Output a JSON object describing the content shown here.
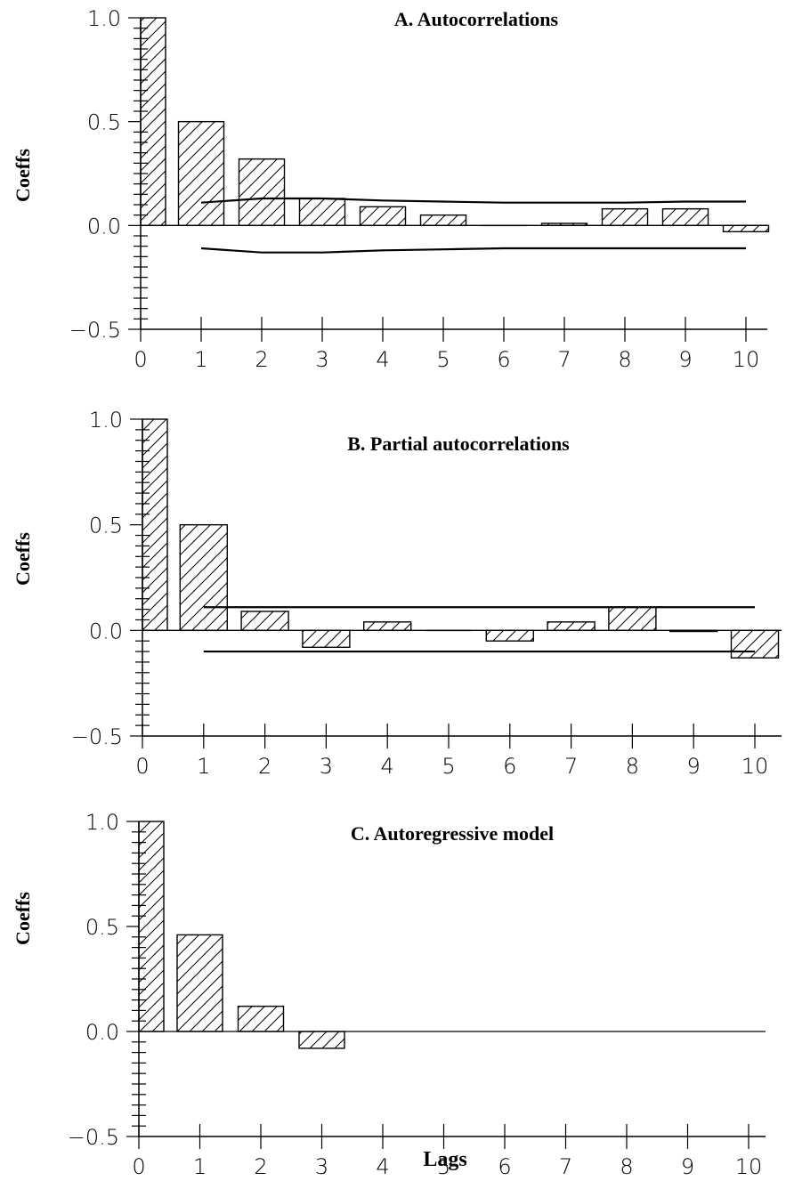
{
  "figure": {
    "xlabel": "Lags",
    "colors": {
      "ink": "#000000",
      "background": "#ffffff"
    },
    "bar_fill": "diagonal-hatch"
  },
  "chart_data": [
    {
      "type": "bar",
      "title": "A. Autocorrelations",
      "ylabel": "Coeffs",
      "xlabel": "",
      "x": [
        0,
        1,
        2,
        3,
        4,
        5,
        6,
        7,
        8,
        9,
        10
      ],
      "values": [
        1.0,
        0.5,
        0.32,
        0.13,
        0.09,
        0.05,
        0.0,
        0.01,
        0.08,
        0.08,
        -0.03
      ],
      "ylim": [
        -0.5,
        1.0
      ],
      "xlim": [
        0,
        10
      ],
      "yticks": [
        "1.0",
        "0.5",
        "0.0",
        "−0.5"
      ],
      "yticks_values": [
        1.0,
        0.5,
        0.0,
        -0.5
      ],
      "xticks": [
        "0",
        "1",
        "2",
        "3",
        "4",
        "5",
        "6",
        "7",
        "8",
        "9",
        "10"
      ],
      "confidence_band": {
        "x": [
          1,
          2,
          3,
          4,
          5,
          6,
          7,
          8,
          9,
          10
        ],
        "upper": [
          0.11,
          0.13,
          0.13,
          0.12,
          0.115,
          0.11,
          0.11,
          0.11,
          0.115,
          0.115
        ],
        "lower": [
          -0.11,
          -0.13,
          -0.13,
          -0.12,
          -0.115,
          -0.11,
          -0.11,
          -0.11,
          -0.11,
          -0.11
        ]
      },
      "grid": false
    },
    {
      "type": "bar",
      "title": "B. Partial autocorrelations",
      "ylabel": "Coeffs",
      "xlabel": "",
      "x": [
        0,
        1,
        2,
        3,
        4,
        5,
        6,
        7,
        8,
        9,
        10
      ],
      "values": [
        1.0,
        0.5,
        0.09,
        -0.08,
        0.04,
        0.0,
        -0.05,
        0.04,
        0.11,
        -0.005,
        -0.13
      ],
      "ylim": [
        -0.5,
        1.0
      ],
      "xlim": [
        0,
        10
      ],
      "yticks": [
        "1.0",
        "0.5",
        "0.0",
        "−0.5"
      ],
      "yticks_values": [
        1.0,
        0.5,
        0.0,
        -0.5
      ],
      "xticks": [
        "0",
        "1",
        "2",
        "3",
        "4",
        "5",
        "6",
        "7",
        "8",
        "9",
        "10"
      ],
      "confidence_band": {
        "x": [
          1,
          10
        ],
        "upper": [
          0.11,
          0.11
        ],
        "lower": [
          -0.1,
          -0.1
        ]
      },
      "grid": false
    },
    {
      "type": "bar",
      "title": "C. Autoregressive model",
      "ylabel": "Coeffs",
      "xlabel": "Lags",
      "x": [
        0,
        1,
        2,
        3
      ],
      "values": [
        1.0,
        0.46,
        0.12,
        -0.08
      ],
      "ylim": [
        -0.5,
        1.0
      ],
      "xlim": [
        0,
        10
      ],
      "yticks": [
        "1.0",
        "0.5",
        "0.0",
        "−0.5"
      ],
      "yticks_values": [
        1.0,
        0.5,
        0.0,
        -0.5
      ],
      "xticks": [
        "0",
        "1",
        "2",
        "3",
        "4",
        "5",
        "6",
        "7",
        "8",
        "9",
        "10"
      ],
      "confidence_band": null,
      "grid": false
    }
  ]
}
